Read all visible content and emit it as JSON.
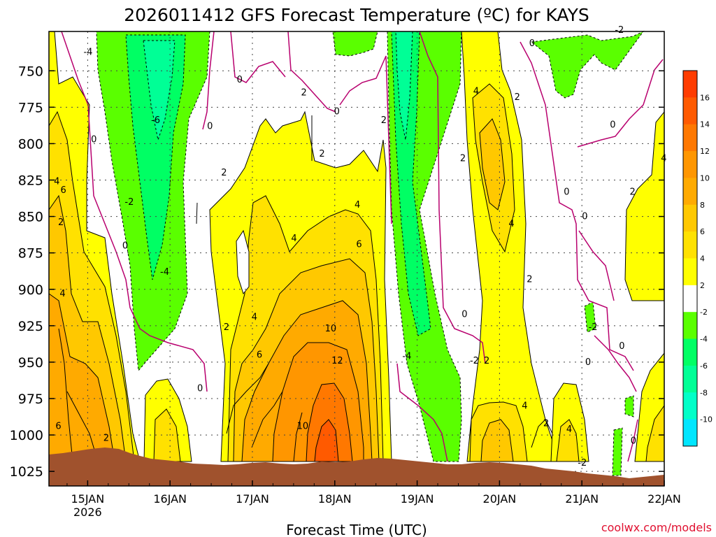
{
  "chart_data": {
    "type": "heatmap",
    "title": "2026011412 GFS Forecast Temperature (ºC) for KAYS",
    "xlabel": "Forecast Time (UTC)",
    "ylabel": "",
    "credit": "coolwx.com/models",
    "y_ticks": [
      "750",
      "775",
      "800",
      "825",
      "850",
      "875",
      "900",
      "925",
      "950",
      "975",
      "1000",
      "1025"
    ],
    "y_range": [
      1035,
      723
    ],
    "y_scale": "pressure (hPa), surface at bottom",
    "x_ticks": [
      {
        "label": "15JAN",
        "sub": "2026"
      },
      {
        "label": "16JAN",
        "sub": ""
      },
      {
        "label": "17JAN",
        "sub": ""
      },
      {
        "label": "18JAN",
        "sub": ""
      },
      {
        "label": "19JAN",
        "sub": ""
      },
      {
        "label": "20JAN",
        "sub": ""
      },
      {
        "label": "21JAN",
        "sub": ""
      },
      {
        "label": "22JAN",
        "sub": ""
      }
    ],
    "x_range_days": [
      14.53,
      22.0
    ],
    "grid": true,
    "legend_placement": "right",
    "legend": [
      {
        "label": "16",
        "color": "#ff3c00"
      },
      {
        "label": "14",
        "color": "#ff5a00"
      },
      {
        "label": "12",
        "color": "#ff7800"
      },
      {
        "label": "10",
        "color": "#ff9600"
      },
      {
        "label": "8",
        "color": "#ffaa00"
      },
      {
        "label": "6",
        "color": "#ffc800"
      },
      {
        "label": "4",
        "color": "#ffe100"
      },
      {
        "label": "2",
        "color": "#ffff00"
      },
      {
        "label": "-2",
        "color": "#ffffff"
      },
      {
        "label": "-4",
        "color": "#5aff00"
      },
      {
        "label": "-6",
        "color": "#00ff64"
      },
      {
        "label": "-8",
        "color": "#00ff96"
      },
      {
        "label": "-10",
        "color": "#00ffc8"
      },
      {
        "label": "",
        "color": "#00e6ff"
      }
    ],
    "contour_labels": [
      {
        "text": "-4",
        "x": 14.95,
        "p": 738
      },
      {
        "text": "-6",
        "x": 15.77,
        "p": 785
      },
      {
        "text": "-2",
        "x": 15.45,
        "p": 841
      },
      {
        "text": "-4",
        "x": 15.88,
        "p": 889
      },
      {
        "text": "0",
        "x": 15.04,
        "p": 798
      },
      {
        "text": "0",
        "x": 15.42,
        "p": 871
      },
      {
        "text": "0",
        "x": 16.45,
        "p": 789
      },
      {
        "text": "0",
        "x": 16.81,
        "p": 757
      },
      {
        "text": "0",
        "x": 16.33,
        "p": 969
      },
      {
        "text": "4",
        "x": 14.59,
        "p": 827
      },
      {
        "text": "6",
        "x": 14.67,
        "p": 833
      },
      {
        "text": "2",
        "x": 14.64,
        "p": 855
      },
      {
        "text": "4",
        "x": 14.66,
        "p": 904
      },
      {
        "text": "6",
        "x": 14.61,
        "p": 995
      },
      {
        "text": "2",
        "x": 15.19,
        "p": 1003
      },
      {
        "text": "2",
        "x": 16.62,
        "p": 821
      },
      {
        "text": "2",
        "x": 16.65,
        "p": 927
      },
      {
        "text": "4",
        "x": 16.99,
        "p": 920
      },
      {
        "text": "6",
        "x": 17.05,
        "p": 946
      },
      {
        "text": "2",
        "x": 17.59,
        "p": 766
      },
      {
        "text": "0",
        "x": 17.99,
        "p": 779
      },
      {
        "text": "2",
        "x": 17.81,
        "p": 808
      },
      {
        "text": "4",
        "x": 18.24,
        "p": 843
      },
      {
        "text": "6",
        "x": 18.26,
        "p": 870
      },
      {
        "text": "4",
        "x": 17.47,
        "p": 866
      },
      {
        "text": "10",
        "x": 17.88,
        "p": 928
      },
      {
        "text": "12",
        "x": 17.96,
        "p": 950
      },
      {
        "text": "10",
        "x": 17.54,
        "p": 995
      },
      {
        "text": "2",
        "x": 18.56,
        "p": 785
      },
      {
        "text": "-4",
        "x": 18.82,
        "p": 947
      },
      {
        "text": "0",
        "x": 19.54,
        "p": 918
      },
      {
        "text": "-2",
        "x": 19.64,
        "p": 950
      },
      {
        "text": "2",
        "x": 19.81,
        "p": 950
      },
      {
        "text": "2",
        "x": 19.52,
        "p": 811
      },
      {
        "text": "4",
        "x": 19.68,
        "p": 765
      },
      {
        "text": "2",
        "x": 20.18,
        "p": 769
      },
      {
        "text": "4",
        "x": 20.11,
        "p": 856
      },
      {
        "text": "2",
        "x": 20.33,
        "p": 894
      },
      {
        "text": "0",
        "x": 20.36,
        "p": 732
      },
      {
        "text": "4",
        "x": 20.27,
        "p": 981
      },
      {
        "text": "2",
        "x": 20.53,
        "p": 993
      },
      {
        "text": "4",
        "x": 20.81,
        "p": 997
      },
      {
        "text": "-2",
        "x": 20.95,
        "p": 1020
      },
      {
        "text": "0",
        "x": 20.78,
        "p": 834
      },
      {
        "text": "0",
        "x": 21.0,
        "p": 851
      },
      {
        "text": "0",
        "x": 21.04,
        "p": 951
      },
      {
        "text": "-2",
        "x": 21.08,
        "p": 927
      },
      {
        "text": "-2",
        "x": 21.4,
        "p": 723
      },
      {
        "text": "0",
        "x": 21.34,
        "p": 788
      },
      {
        "text": "2",
        "x": 21.58,
        "p": 834
      },
      {
        "text": "4",
        "x": 21.96,
        "p": 811
      },
      {
        "text": "0",
        "x": 21.45,
        "p": 940
      },
      {
        "text": "0",
        "x": 21.59,
        "p": 1005
      }
    ]
  }
}
